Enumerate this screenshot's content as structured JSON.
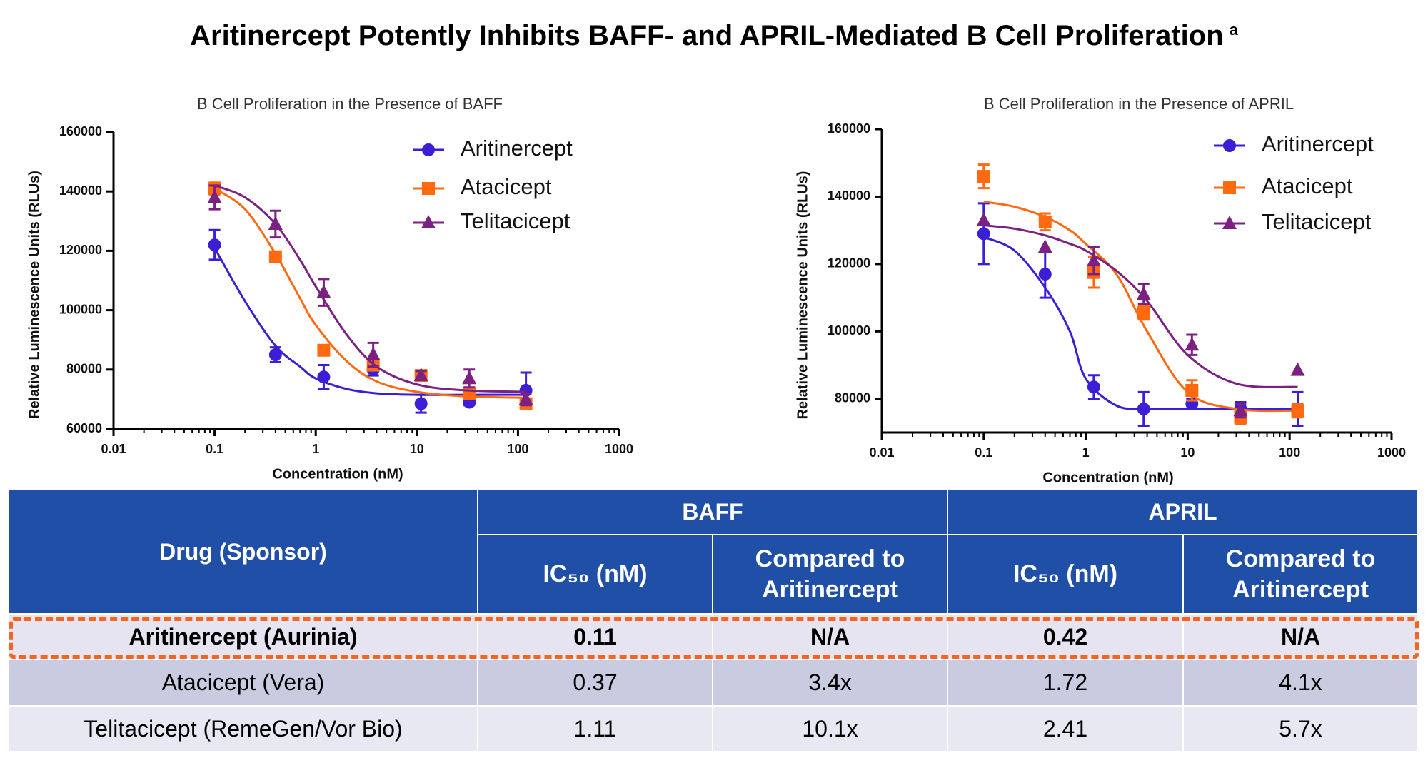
{
  "title": "Aritinercept Potently Inhibits BAFF- and APRIL-Mediated B Cell Proliferation",
  "title_note": "a",
  "chart_data": [
    {
      "type": "scatter",
      "title": "B Cell Proliferation in the Presence of BAFF",
      "x_label": "Concentration (nM)",
      "y_label": "Relative Luminescence Units (RLUs)",
      "x_scale": "log",
      "xlim": [
        0.01,
        1000
      ],
      "xticks": [
        0.01,
        0.1,
        1,
        10,
        100,
        1000
      ],
      "ylim": [
        60000,
        160000
      ],
      "yticks": [
        60000,
        80000,
        100000,
        120000,
        140000,
        160000
      ],
      "x": [
        0.1,
        0.4,
        1.2,
        3.7,
        11,
        33,
        120
      ],
      "fit_x": [
        0.1,
        0.2,
        0.4,
        0.7,
        1,
        2,
        4,
        10,
        30,
        120
      ],
      "series": [
        {
          "name": "Aritinercept",
          "color": "#3a1fd6",
          "marker": "circle",
          "values": [
            122000,
            85000,
            77500,
            80000,
            68500,
            69000,
            73000
          ],
          "errors": [
            5000,
            2500,
            4000,
            2000,
            3000,
            1000,
            6000
          ],
          "fit": [
            121000,
            103000,
            88000,
            81000,
            77000,
            73500,
            72000,
            71500,
            71500,
            71500
          ]
        },
        {
          "name": "Atacicept",
          "color": "#ff6a10",
          "marker": "square",
          "values": [
            141000,
            118000,
            86500,
            81500,
            78000,
            72000,
            68500
          ],
          "errors": [
            2000,
            1000,
            1500,
            1500,
            1500,
            1500,
            1500
          ],
          "fit": [
            141000,
            134000,
            119000,
            104000,
            95000,
            83000,
            76000,
            72500,
            71000,
            70500
          ]
        },
        {
          "name": "Telitacicept",
          "color": "#7b2182",
          "marker": "triangle",
          "values": [
            138000,
            129000,
            106000,
            85000,
            78000,
            77000,
            70000
          ],
          "errors": [
            4000,
            4500,
            4500,
            4000,
            1500,
            3000,
            2000
          ],
          "fit": [
            142000,
            138000,
            129000,
            117000,
            108000,
            92000,
            81000,
            75000,
            73000,
            72500
          ]
        }
      ]
    },
    {
      "type": "scatter",
      "title": "B Cell Proliferation in the Presence of APRIL",
      "x_label": "Concentration (nM)",
      "y_label": "Relative Luminescence Units (RLUs)",
      "x_scale": "log",
      "xlim": [
        0.01,
        1000
      ],
      "xticks": [
        0.01,
        0.1,
        1,
        10,
        100,
        1000
      ],
      "ylim": [
        70000,
        160000
      ],
      "yticks": [
        80000,
        100000,
        120000,
        140000,
        160000
      ],
      "x": [
        0.1,
        0.4,
        1.2,
        3.7,
        11,
        33,
        120
      ],
      "fit_x": [
        0.1,
        0.2,
        0.4,
        0.7,
        1,
        2,
        4,
        10,
        30,
        120
      ],
      "series": [
        {
          "name": "Aritinercept",
          "color": "#3a1fd6",
          "marker": "circle",
          "values": [
            129000,
            117000,
            83500,
            77000,
            78500,
            77000,
            77000
          ],
          "errors": [
            9000,
            7000,
            3500,
            5000,
            1500,
            2000,
            5000
          ],
          "fit": [
            128000,
            124000,
            113000,
            100000,
            86000,
            78000,
            77000,
            77000,
            77000,
            77000
          ]
        },
        {
          "name": "Atacicept",
          "color": "#ff6a10",
          "marker": "square",
          "values": [
            146000,
            132500,
            117500,
            105500,
            82500,
            74500,
            76500
          ],
          "errors": [
            3500,
            2500,
            4500,
            2000,
            3000,
            2000,
            2000
          ],
          "fit": [
            138500,
            137000,
            134000,
            130000,
            126000,
            117000,
            100000,
            82000,
            77000,
            76500
          ]
        },
        {
          "name": "Telitacicept",
          "color": "#7b2182",
          "marker": "triangle",
          "values": [
            133000,
            125000,
            121000,
            111000,
            96000,
            76500,
            88500
          ],
          "errors": [
            0,
            0,
            4000,
            3000,
            3000,
            2000,
            0
          ],
          "fit": [
            131500,
            130500,
            128500,
            126000,
            124000,
            118000,
            109000,
            93000,
            84500,
            83500
          ]
        }
      ]
    }
  ],
  "table": {
    "drug_header": "Drug (Sponsor)",
    "groups": [
      "BAFF",
      "APRIL"
    ],
    "columns": [
      "IC₅₀ (nM)",
      "Compared to Aritinercept",
      "IC₅₀ (nM)",
      "Compared to Aritinercept"
    ],
    "rows": [
      [
        "Aritinercept (Aurinia)",
        "0.11",
        "N/A",
        "0.42",
        "N/A"
      ],
      [
        "Atacicept (Vera)",
        "0.37",
        "3.4x",
        "1.72",
        "4.1x"
      ],
      [
        "Telitacicept (RemeGen/Vor Bio)",
        "1.11",
        "10.1x",
        "2.41",
        "5.7x"
      ]
    ]
  }
}
